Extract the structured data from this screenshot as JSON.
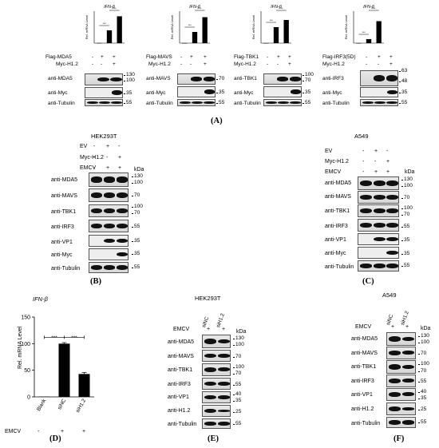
{
  "panel_labels": {
    "a": "(A)",
    "b": "(B)",
    "c": "(C)",
    "d": "(D)",
    "e": "(E)",
    "f": "(F)"
  },
  "common": {
    "gene": "IFN-β",
    "ylabel_short": "Rel. mRNA Level",
    "sig": "***",
    "plus": "+",
    "minus": "-",
    "kda": "kDa"
  },
  "panel_a": {
    "charts": [
      {
        "rows": [
          "Flag-MDA5",
          "Myc-H1.2"
        ],
        "blots": [
          "anti-MDA5",
          "anti-Myc",
          "anti-Tubulin"
        ],
        "markers": [
          [
            "130",
            "100"
          ],
          [
            "35"
          ],
          [
            "55"
          ]
        ]
      },
      {
        "rows": [
          "Flag-MAVS",
          "Myc-H1.2"
        ],
        "blots": [
          "anti-MAVS",
          "anti-Myc",
          "anti-Tubulin"
        ],
        "markers": [
          [
            "70"
          ],
          [
            "35"
          ],
          [
            "55"
          ]
        ]
      },
      {
        "rows": [
          "Flag-TBK1",
          "Myc-H1.2"
        ],
        "blots": [
          "anti-TBK1",
          "anti-Myc",
          "anti-Tubulin"
        ],
        "markers": [
          [
            "100",
            "70"
          ],
          [
            "35"
          ],
          [
            "55"
          ]
        ]
      },
      {
        "rows": [
          "Flag-IRF3(5D)",
          "Myc-H1.2"
        ],
        "blots": [
          "anti-IRF3",
          "anti-Myc",
          "anti-Tubulin"
        ],
        "markers": [
          [
            "63",
            "48"
          ],
          [
            "35"
          ],
          [
            "55"
          ]
        ]
      }
    ]
  },
  "panel_b": {
    "cell": "HEK293T",
    "rows": [
      "EV",
      "Myc-H1.2",
      "EMCV"
    ],
    "blots": [
      "anti-MDA5",
      "anti-MAVS",
      "anti-TBK1",
      "anti-IRF3",
      "anti-VP1",
      "anti-Myc",
      "anti-Tubulin"
    ],
    "markers": [
      [
        "130",
        "100"
      ],
      [
        "70"
      ],
      [
        "100",
        "70"
      ],
      [
        "55"
      ],
      [
        "35"
      ],
      [
        "35"
      ],
      [
        "55"
      ]
    ]
  },
  "panel_c": {
    "cell": "A549",
    "rows": [
      "EV",
      "Myc-H1.2",
      "EMCV"
    ],
    "blots": [
      "anti-MDA5",
      "anti-MAVS",
      "anti-TBK1",
      "anti-IRF3",
      "anti-VP1",
      "anti-Myc",
      "anti-Tubulin"
    ],
    "markers": [
      [
        "130",
        "100"
      ],
      [
        "70"
      ],
      [
        "100",
        "70"
      ],
      [
        "55"
      ],
      [
        "35"
      ],
      [
        "35"
      ],
      [
        "55"
      ]
    ]
  },
  "panel_d": {
    "gene": "IFN-β",
    "ylabel": "Rel. mRNA Level",
    "emcv": "EMCV",
    "emcv_signs": [
      "-",
      "+",
      "+"
    ]
  },
  "panel_e": {
    "cell": "HEK293T",
    "emcv": "EMCV",
    "cols": [
      "siNC",
      "siH1.2"
    ],
    "blots": [
      "anti-MDA5",
      "anti-MAVS",
      "anti-TBK1",
      "anti-IRF3",
      "anti-VP1",
      "anti-H1.2",
      "anti-Tubulin"
    ],
    "markers": [
      [
        "130",
        "100"
      ],
      [
        "70"
      ],
      [
        "100",
        "70"
      ],
      [
        "55"
      ],
      [
        "40",
        "35"
      ],
      [
        "25"
      ],
      [
        "55"
      ]
    ]
  },
  "panel_f": {
    "cell": "A549",
    "emcv": "EMCV",
    "cols": [
      "siNC",
      "siH1.2"
    ],
    "blots": [
      "anti-MDA5",
      "anti-MAVS",
      "anti-TBK1",
      "anti-IRF3",
      "anti-VP1",
      "anti-H1.2",
      "anti-Tubulin"
    ],
    "markers": [
      [
        "130",
        "100"
      ],
      [
        "70"
      ],
      [
        "100",
        "70"
      ],
      [
        "55"
      ],
      [
        "40",
        "35"
      ],
      [
        "25"
      ],
      [
        "55"
      ]
    ]
  },
  "chart_data": [
    {
      "type": "bar",
      "categories": [
        "1",
        "2",
        "3"
      ],
      "values": [
        0.2,
        20,
        42
      ],
      "ylim": [
        0,
        50
      ],
      "title": "IFN-β",
      "ylabel": "Rel. mRNA Level"
    },
    {
      "type": "bar",
      "categories": [
        "1",
        "2",
        "3"
      ],
      "values": [
        0.2,
        28,
        65
      ],
      "ylim": [
        0,
        80
      ],
      "title": "IFN-β",
      "ylabel": "Rel. mRNA Level"
    },
    {
      "type": "bar",
      "categories": [
        "1",
        "2",
        "3"
      ],
      "values": [
        0.2,
        40,
        58
      ],
      "ylim": [
        0,
        80
      ],
      "title": "IFN-β",
      "ylabel": "Rel. mRNA Level"
    },
    {
      "type": "bar",
      "categories": [
        "1",
        "2",
        "3"
      ],
      "values": [
        0.2,
        10,
        55
      ],
      "ylim": [
        0,
        80
      ],
      "title": "IFN-β",
      "ylabel": "Rel. mRNA Level"
    },
    {
      "type": "bar",
      "categories": [
        "Blank",
        "siNC",
        "siH1.2"
      ],
      "values": [
        0.5,
        100,
        43
      ],
      "ylim": [
        0,
        150
      ],
      "yticks": [
        0,
        50,
        100,
        150
      ],
      "title": "IFN-β",
      "ylabel": "Rel. mRNA Level"
    }
  ]
}
